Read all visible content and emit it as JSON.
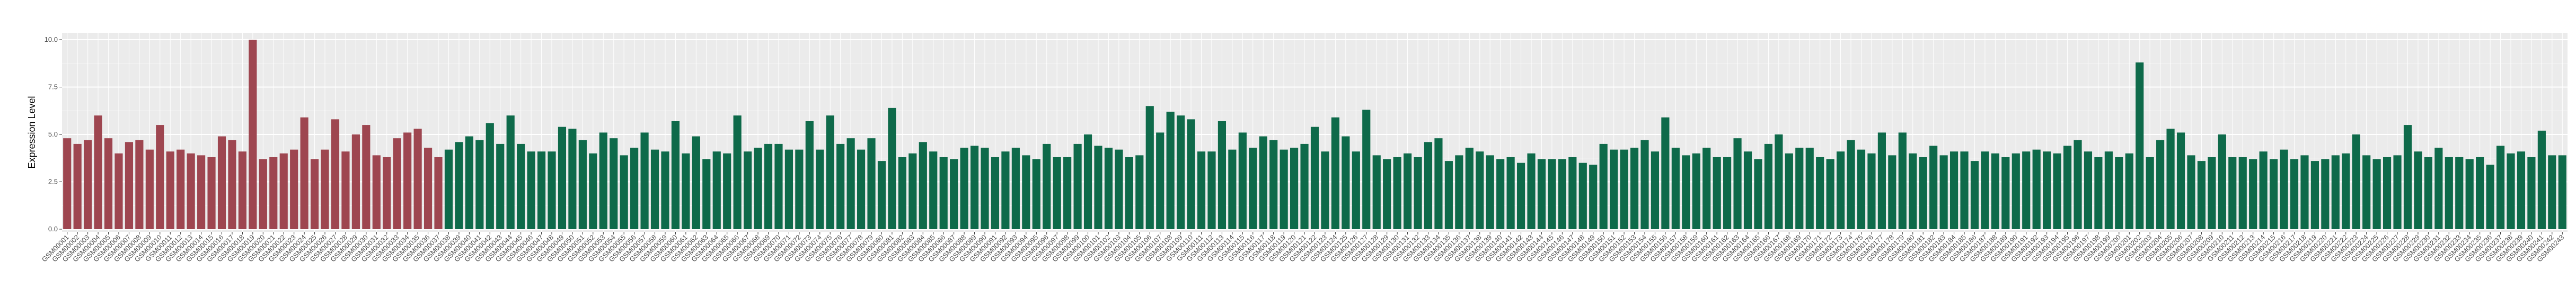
{
  "chart_data": {
    "type": "bar",
    "title": "",
    "xlabel": "",
    "ylabel": "Expression Level",
    "ylim": [
      0,
      10.4
    ],
    "yticks": [
      "0.0",
      "2.5",
      "5.0",
      "7.5",
      "10.0"
    ],
    "ytick_values": [
      0,
      2.5,
      5,
      7.5,
      10
    ],
    "grid": true,
    "legend": "none",
    "colors": {
      "group_a": "#9e4650",
      "group_b": "#0e6a4a",
      "panel_background": "#ebebeb",
      "grid_major": "#ffffff"
    },
    "group_a_count": 37,
    "category_prefix": "GSM",
    "category_digits": 5,
    "values": [
      4.8,
      4.5,
      4.7,
      6.0,
      4.8,
      4.0,
      4.6,
      4.7,
      4.2,
      5.5,
      4.1,
      4.2,
      4.0,
      3.9,
      3.8,
      4.9,
      4.7,
      4.1,
      10.0,
      3.7,
      3.8,
      4.0,
      4.2,
      5.9,
      3.7,
      4.2,
      5.8,
      4.1,
      5.0,
      5.5,
      3.9,
      3.8,
      4.8,
      5.1,
      5.3,
      4.3,
      3.8,
      4.2,
      4.6,
      4.9,
      4.7,
      5.6,
      4.5,
      6.0,
      4.5,
      4.1,
      4.1,
      4.1,
      5.4,
      5.3,
      4.7,
      4.0,
      5.1,
      4.8,
      3.9,
      4.3,
      5.1,
      4.2,
      4.1,
      5.7,
      4.0,
      4.9,
      3.7,
      4.1,
      4.0,
      6.0,
      4.1,
      4.3,
      4.5,
      4.5,
      4.2,
      4.2,
      5.7,
      4.2,
      6.0,
      4.5,
      4.8,
      4.2,
      4.8,
      3.6,
      6.4,
      3.8,
      4.0,
      4.6,
      4.1,
      3.8,
      3.7,
      4.3,
      4.4,
      4.3,
      3.8,
      4.1,
      4.3,
      3.9,
      3.7,
      4.5,
      3.8,
      3.8,
      4.5,
      5.0,
      4.4,
      4.3,
      4.2,
      3.8,
      3.9,
      6.5,
      5.1,
      6.2,
      6.0,
      5.8,
      4.1,
      4.1,
      5.7,
      4.2,
      5.1,
      4.3,
      4.9,
      4.7,
      4.2,
      4.3,
      4.5,
      5.4,
      4.1,
      5.9,
      4.9,
      4.1,
      6.3,
      3.9,
      3.7,
      3.8,
      4.0,
      3.8,
      4.6,
      4.8,
      3.6,
      3.9,
      4.3,
      4.1,
      3.9,
      3.7,
      3.8,
      3.5,
      4.0,
      3.7,
      3.7,
      3.7,
      3.8,
      3.5,
      3.4,
      4.5,
      4.2,
      4.2,
      4.3,
      4.7,
      4.1,
      5.9,
      4.3,
      3.9,
      4.0,
      4.3,
      3.8,
      3.8,
      4.8,
      4.1,
      3.7,
      4.5,
      5.0,
      4.0,
      4.3,
      4.3,
      3.8,
      3.7,
      4.1,
      4.7,
      4.2,
      4.0,
      5.1,
      3.9,
      5.1,
      4.0,
      3.8,
      4.4,
      3.9,
      4.1,
      4.1,
      3.6,
      4.1,
      4.0,
      3.8,
      4.0,
      4.1,
      4.2,
      4.1,
      4.0,
      4.4,
      4.7,
      4.1,
      3.8,
      4.1,
      3.8,
      4.0,
      8.8,
      3.8,
      4.7,
      5.3,
      5.1,
      3.9,
      3.6,
      3.8,
      5.0,
      3.8,
      3.8,
      3.7,
      4.1,
      3.7,
      4.2,
      3.7,
      3.9,
      3.6,
      3.7,
      3.9,
      4.0,
      5.0,
      3.9,
      3.7,
      3.8,
      3.9,
      5.5,
      4.1,
      3.8,
      4.3,
      3.8,
      3.8,
      3.7,
      3.8,
      3.4,
      4.4,
      4.0,
      4.1,
      3.8,
      5.2,
      3.9,
      3.9
    ]
  }
}
